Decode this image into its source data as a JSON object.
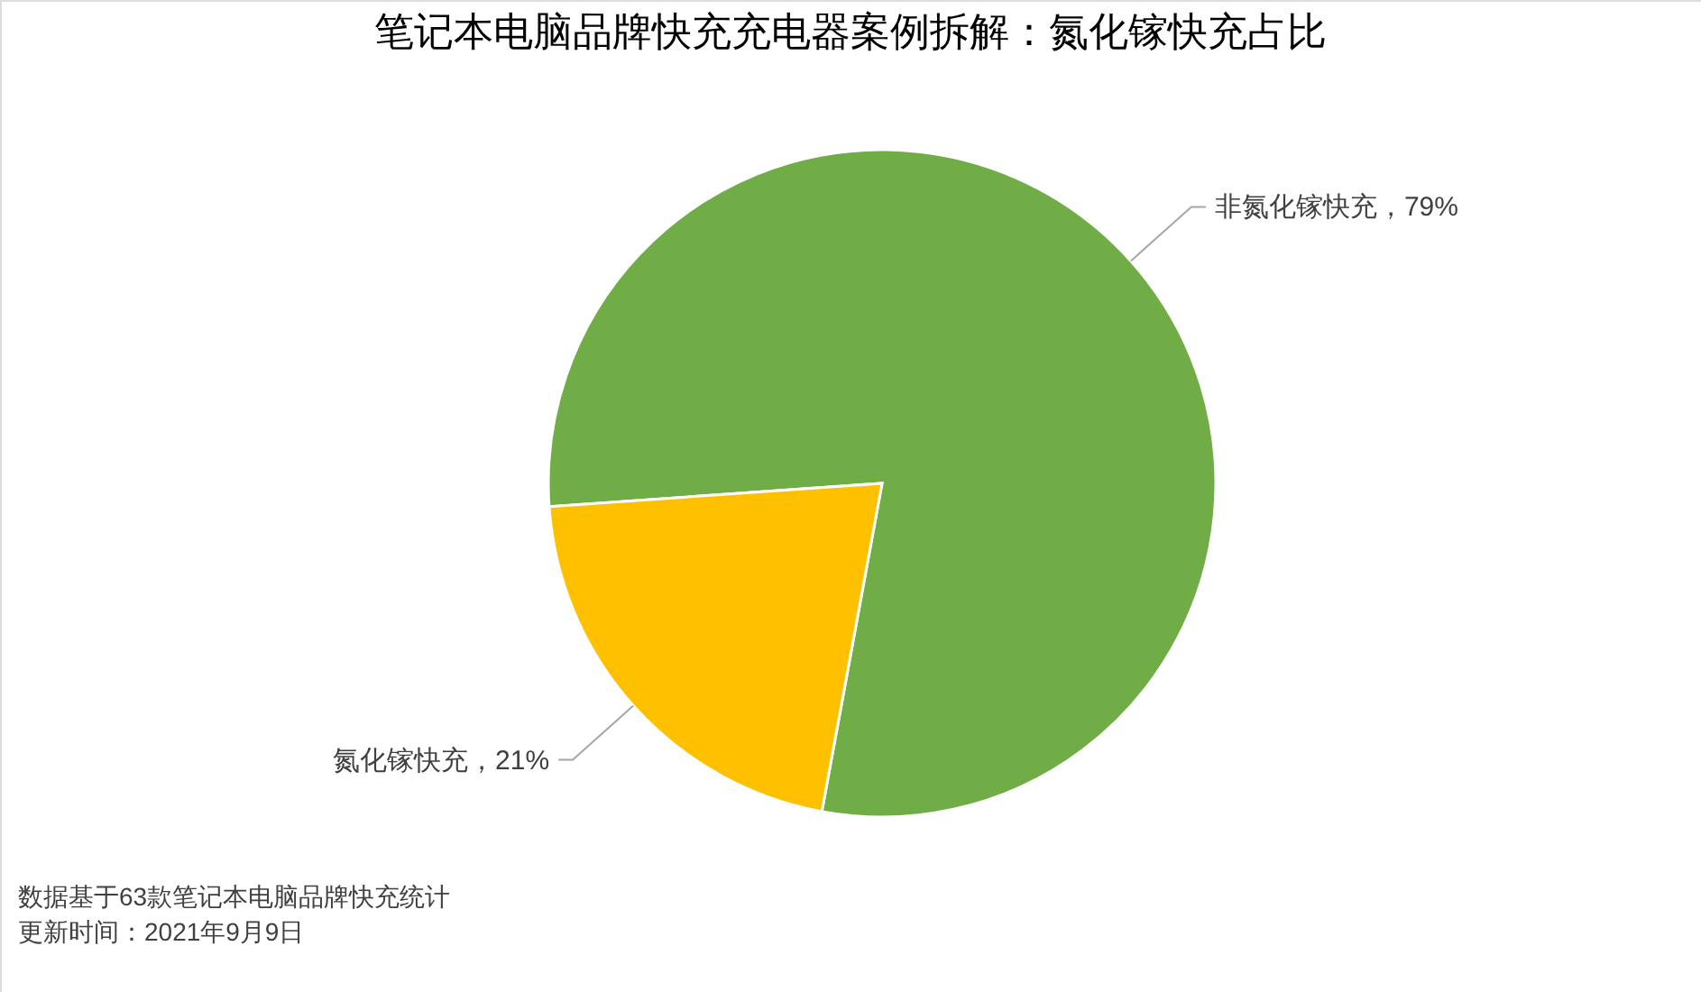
{
  "chart_data": {
    "type": "pie",
    "title": "笔记本电脑品牌快充充电器案例拆解：氮化镓快充占比",
    "categories": [
      "非氮化镓快充",
      "氮化镓快充"
    ],
    "values": [
      79,
      21
    ],
    "colors": [
      "#70ad47",
      "#ffc000"
    ],
    "value_labels": [
      "79%",
      "21%"
    ],
    "annotations": [
      "数据基于63款笔记本电脑品牌快充统计",
      "更新时间：2021年9月9日"
    ],
    "legend": false
  }
}
